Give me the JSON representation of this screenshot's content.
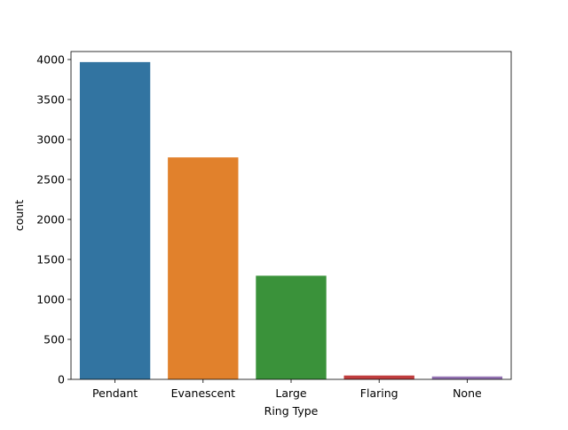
{
  "chart_data": {
    "type": "bar",
    "title": "",
    "xlabel": "Ring Type",
    "ylabel": "count",
    "categories": [
      "Pendant",
      "Evanescent",
      "Large",
      "Flaring",
      "None"
    ],
    "values": [
      3968,
      2776,
      1296,
      48,
      36
    ],
    "colors": [
      "#3274a1",
      "#e1812c",
      "#3a923a",
      "#c03d3e",
      "#9372b2"
    ],
    "ylim": [
      0,
      4100
    ],
    "yticks": [
      0,
      500,
      1000,
      1500,
      2000,
      2500,
      3000,
      3500,
      4000
    ],
    "grid": false,
    "legend": "none"
  }
}
